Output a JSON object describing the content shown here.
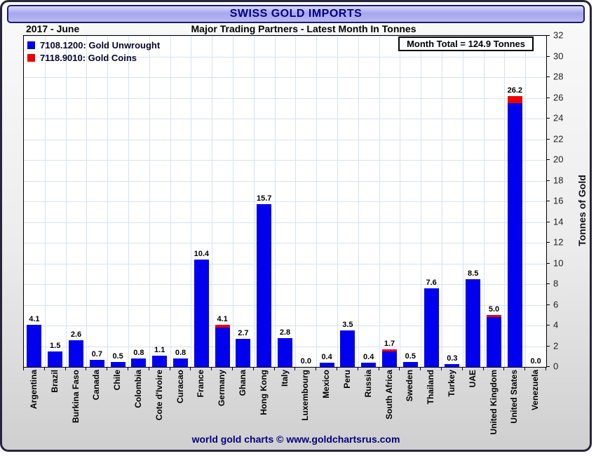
{
  "window": {
    "title": "SWISS GOLD IMPORTS",
    "period": "2017 - June",
    "subtitle": "Major Trading Partners - Latest Month In Tonnes",
    "footer": "world gold charts © www.goldchartsrus.com"
  },
  "colors": {
    "accent_navy": "#000080",
    "bar_blue": "#0000EE",
    "bar_red": "#EE0000",
    "grid": "#d4e3f1"
  },
  "legend": [
    {
      "label": "7108.1200: Gold Unwrought",
      "color": "#0000EE"
    },
    {
      "label": "7118.9010: Gold Coins",
      "color": "#EE0000"
    }
  ],
  "month_total": "Month Total = 124.9 Tonnes",
  "chart_data": {
    "type": "bar",
    "stacked": true,
    "title": "SWISS GOLD IMPORTS",
    "subtitle": "Major Trading Partners - Latest Month In Tonnes",
    "ylabel": "Tonnes of Gold",
    "ylim": [
      0,
      32
    ],
    "ytick_step": 2,
    "grid": true,
    "legend_position": "top-left",
    "categories": [
      "Argentina",
      "Brazil",
      "Burkina Faso",
      "Canada",
      "Chile",
      "Colombia",
      "Cote d'Ivoire",
      "Curacao",
      "France",
      "Germany",
      "Ghana",
      "Hong Kong",
      "Italy",
      "Luxembourg",
      "Mexico",
      "Peru",
      "Russia",
      "South Africa",
      "Sweden",
      "Thailand",
      "Turkey",
      "UAE",
      "United Kingdom",
      "United States",
      "Venezuela"
    ],
    "series": [
      {
        "name": "7108.1200: Gold Unwrought",
        "color": "#0000EE",
        "values": [
          4.1,
          1.5,
          2.6,
          0.7,
          0.5,
          0.8,
          1.1,
          0.8,
          10.4,
          3.8,
          2.7,
          15.7,
          2.8,
          0.0,
          0.4,
          3.5,
          0.4,
          1.5,
          0.5,
          7.6,
          0.3,
          8.5,
          4.8,
          25.5,
          0.0
        ]
      },
      {
        "name": "7118.9010: Gold Coins",
        "color": "#EE0000",
        "values": [
          0,
          0,
          0,
          0,
          0,
          0,
          0,
          0,
          0,
          0.3,
          0,
          0,
          0,
          0,
          0,
          0,
          0,
          0.2,
          0,
          0,
          0,
          0,
          0.2,
          0.7,
          0
        ]
      }
    ],
    "bar_total_labels": [
      4.1,
      1.5,
      2.6,
      0.7,
      0.5,
      0.8,
      1.1,
      0.8,
      10.4,
      4.1,
      2.7,
      15.7,
      2.8,
      0.0,
      0.4,
      3.5,
      0.4,
      1.7,
      0.5,
      7.6,
      0.3,
      8.5,
      5.0,
      26.2,
      0.0
    ]
  }
}
